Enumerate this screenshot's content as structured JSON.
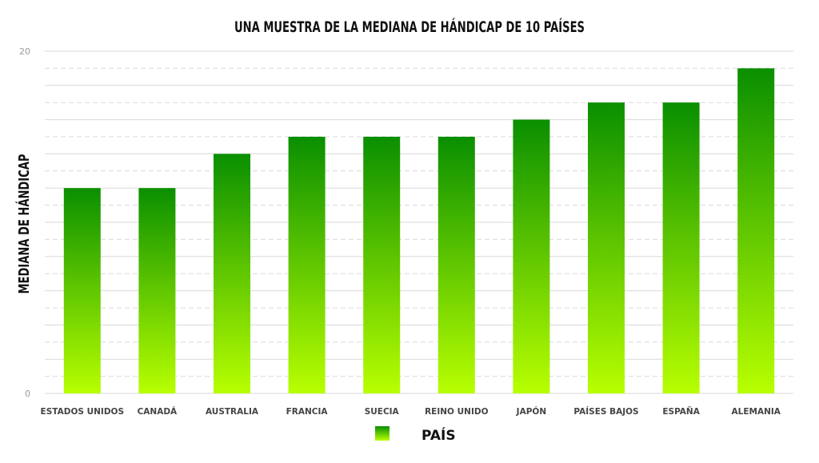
{
  "chart_data": {
    "type": "bar",
    "title": "UNA MUESTRA DE LA MEDIANA DE HÁNDICAP DE 10 PAÍSES",
    "ylabel": "MEDIANA DE HÁNDICAP",
    "xlabel": "",
    "ylim": [
      0,
      20
    ],
    "yticks": [
      0,
      20
    ],
    "grid": true,
    "legend": {
      "position": "bottom-center",
      "label": "PAÍS"
    },
    "categories": [
      "ESTADOS UNIDOS",
      "CANADÁ",
      "AUSTRALIA",
      "FRANCIA",
      "SUECIA",
      "REINO UNIDO",
      "JAPÓN",
      "PAÍSES BAJOS",
      "ESPAÑA",
      "ALEMANIA"
    ],
    "series": [
      {
        "name": "PAÍS",
        "values": [
          12,
          12,
          14,
          15,
          15,
          15,
          16,
          17,
          17,
          19
        ]
      }
    ],
    "colors": {
      "bar_top": "#0a8f00",
      "bar_bottom": "#b8ff00",
      "grid": "#d9d9d9",
      "text": "#111111",
      "tick": "#999999"
    }
  }
}
